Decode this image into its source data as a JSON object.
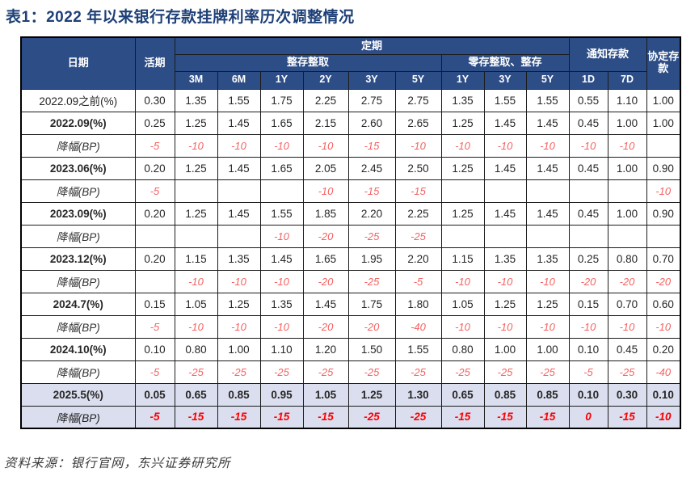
{
  "title": "表1：2022 年以来银行存款挂牌利率历次调整情况",
  "source": "资料来源：银行官网，东兴证券研究所",
  "colors": {
    "title": "#1e4077",
    "header_bg": "#2d4d86",
    "highlight_bg": "#dbdeee",
    "drop_red": "#f56262",
    "strong_red": "#fe0000"
  },
  "table": {
    "header": {
      "date": "日期",
      "demand": "活期",
      "fixed": "定期",
      "lump": "整存整取",
      "installment": "零存整取、整存",
      "notice": "通知存款",
      "agreement": "协定存款",
      "lump_terms": [
        "3M",
        "6M",
        "1Y",
        "2Y",
        "3Y",
        "5Y"
      ],
      "installment_terms": [
        "1Y",
        "3Y",
        "5Y"
      ],
      "notice_terms": [
        "1D",
        "7D"
      ]
    },
    "rows": [
      {
        "label": "2022.09之前(%)",
        "type": "rate-first",
        "cells": [
          "0.30",
          "1.35",
          "1.55",
          "1.75",
          "2.25",
          "2.75",
          "2.75",
          "1.35",
          "1.55",
          "1.55",
          "0.55",
          "1.10",
          "1.00"
        ]
      },
      {
        "label": "2022.09(%)",
        "type": "rate",
        "cells": [
          "0.25",
          "1.25",
          "1.45",
          "1.65",
          "2.15",
          "2.60",
          "2.65",
          "1.25",
          "1.45",
          "1.45",
          "0.45",
          "1.00",
          "1.00"
        ]
      },
      {
        "label": "降幅(BP)",
        "type": "drop",
        "cells": [
          "-5",
          "-10",
          "-10",
          "-10",
          "-10",
          "-15",
          "-10",
          "-10",
          "-10",
          "-10",
          "-10",
          "-10",
          ""
        ]
      },
      {
        "label": "2023.06(%)",
        "type": "rate",
        "cells": [
          "0.20",
          "1.25",
          "1.45",
          "1.65",
          "2.05",
          "2.45",
          "2.50",
          "1.25",
          "1.45",
          "1.45",
          "0.45",
          "1.00",
          "0.90"
        ]
      },
      {
        "label": "降幅(BP)",
        "type": "drop",
        "cells": [
          "-5",
          "",
          "",
          "",
          "-10",
          "-15",
          "-15",
          "",
          "",
          "",
          "",
          "",
          "-10"
        ]
      },
      {
        "label": "2023.09(%)",
        "type": "rate",
        "cells": [
          "0.20",
          "1.25",
          "1.45",
          "1.55",
          "1.85",
          "2.20",
          "2.25",
          "1.25",
          "1.45",
          "1.45",
          "0.45",
          "1.00",
          "0.90"
        ]
      },
      {
        "label": "降幅(BP)",
        "type": "drop",
        "cells": [
          "",
          "",
          "",
          "-10",
          "-20",
          "-25",
          "-25",
          "",
          "",
          "",
          "",
          "",
          ""
        ]
      },
      {
        "label": "2023.12(%)",
        "type": "rate",
        "cells": [
          "0.20",
          "1.15",
          "1.35",
          "1.45",
          "1.65",
          "1.95",
          "2.20",
          "1.15",
          "1.35",
          "1.35",
          "0.25",
          "0.80",
          "0.70"
        ]
      },
      {
        "label": "降幅(BP)",
        "type": "drop",
        "cells": [
          "",
          "-10",
          "-10",
          "-10",
          "-20",
          "-25",
          "-5",
          "-10",
          "-10",
          "-10",
          "-20",
          "-20",
          "-20"
        ]
      },
      {
        "label": "2024.7(%)",
        "type": "rate",
        "cells": [
          "0.15",
          "1.05",
          "1.25",
          "1.35",
          "1.45",
          "1.75",
          "1.80",
          "1.05",
          "1.25",
          "1.25",
          "0.15",
          "0.70",
          "0.60"
        ]
      },
      {
        "label": "降幅(BP)",
        "type": "drop",
        "cells": [
          "-5",
          "-10",
          "-10",
          "-10",
          "-20",
          "-20",
          "-40",
          "-10",
          "-10",
          "-10",
          "-10",
          "-10",
          "-10"
        ]
      },
      {
        "label": "2024.10(%)",
        "type": "rate",
        "cells": [
          "0.10",
          "0.80",
          "1.00",
          "1.10",
          "1.20",
          "1.50",
          "1.55",
          "0.80",
          "1.00",
          "1.00",
          "0.10",
          "0.45",
          "0.20"
        ]
      },
      {
        "label": "降幅(BP)",
        "type": "drop",
        "cells": [
          "-5",
          "-25",
          "-25",
          "-25",
          "-25",
          "-25",
          "-25",
          "-25",
          "-25",
          "-25",
          "-5",
          "-25",
          "-40"
        ]
      },
      {
        "label": "2025.5(%)",
        "type": "rate-final",
        "cells": [
          "0.05",
          "0.65",
          "0.85",
          "0.95",
          "1.05",
          "1.25",
          "1.30",
          "0.65",
          "0.85",
          "0.85",
          "0.10",
          "0.30",
          "0.10"
        ]
      },
      {
        "label": "降幅(BP)",
        "type": "drop-final",
        "cells": [
          "-5",
          "-15",
          "-15",
          "-15",
          "-15",
          "-25",
          "-25",
          "-15",
          "-15",
          "-15",
          "0",
          "-15",
          "-10"
        ]
      }
    ]
  }
}
